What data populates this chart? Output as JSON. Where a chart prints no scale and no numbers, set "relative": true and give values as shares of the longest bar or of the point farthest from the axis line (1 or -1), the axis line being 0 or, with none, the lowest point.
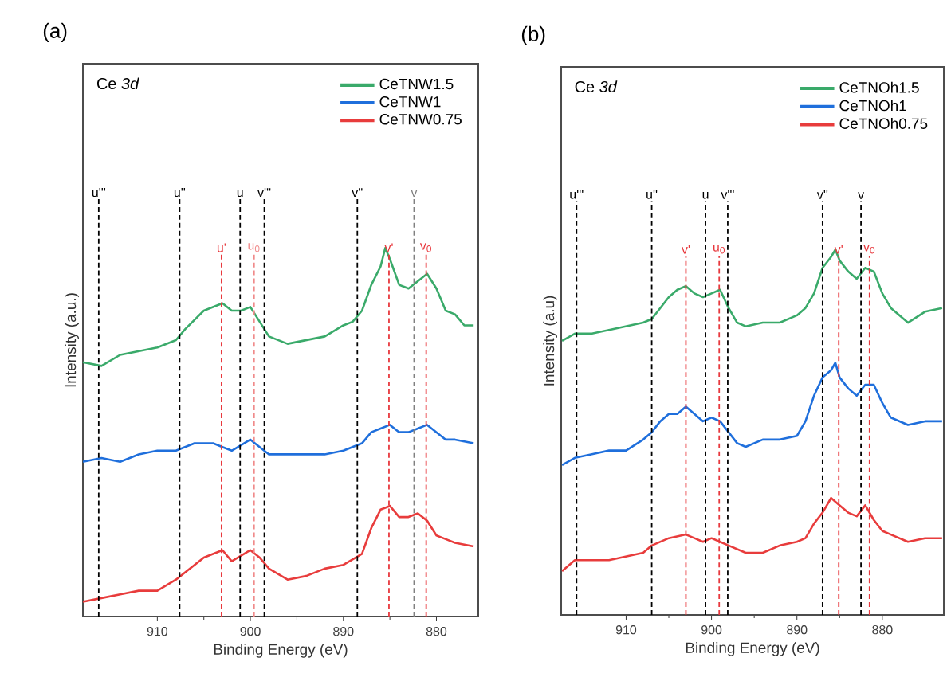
{
  "chart_data": [
    {
      "type": "line",
      "title": "(a)",
      "xlabel": "Binding Energy (eV)",
      "ylabel": "Intensity (a.u.)",
      "relative": true,
      "legend": "top right",
      "annotations": [
        "Ce *3d*"
      ],
      "xlim": [
        918,
        875.5
      ],
      "xticks": [
        910,
        900,
        890,
        880
      ],
      "ref_lines": [
        {
          "axis": "x",
          "value": 916.3,
          "label": "u'''",
          "color": "#000000",
          "line_style": "dashed"
        },
        {
          "axis": "x",
          "value": 907.6,
          "label": "u''",
          "color": "#000000",
          "line_style": "dashed"
        },
        {
          "axis": "x",
          "value": 901.1,
          "label": "u",
          "color": "#000000",
          "line_style": "dashed"
        },
        {
          "axis": "x",
          "value": 898.5,
          "label": "v'''",
          "color": "#000000",
          "line_style": "dashed"
        },
        {
          "axis": "x",
          "value": 888.5,
          "label": "v''",
          "color": "#000000",
          "line_style": "dashed"
        },
        {
          "axis": "x",
          "value": 882.4,
          "label": "v",
          "color": "#808080",
          "line_style": "dashed"
        },
        {
          "axis": "x",
          "value": 903.1,
          "label": "u'",
          "color": "#e8383d",
          "line_style": "dashed"
        },
        {
          "axis": "x",
          "value": 899.6,
          "label": "u$_{0}$",
          "color": "#f08a8a",
          "line_style": "dashed"
        },
        {
          "axis": "x",
          "value": 885.1,
          "label": "v'",
          "color": "#e8383d",
          "line_style": "dashed"
        },
        {
          "axis": "x",
          "value": 881.1,
          "label": "v$_{0}$",
          "color": "#e8383d",
          "line_style": "dashed"
        }
      ],
      "series": [
        {
          "name": "CeTNW1.5",
          "color": "#3aaa6a",
          "x": [
            918,
            916,
            914,
            912,
            910,
            908,
            907,
            905,
            903,
            902,
            901,
            900,
            899,
            898,
            896,
            894,
            892,
            890,
            889,
            888,
            887,
            886,
            885.5,
            885,
            884,
            883,
            882,
            881,
            880,
            879,
            878,
            877,
            876
          ],
          "values": [
            0.69,
            0.68,
            0.71,
            0.72,
            0.73,
            0.75,
            0.78,
            0.83,
            0.85,
            0.83,
            0.83,
            0.84,
            0.8,
            0.76,
            0.74,
            0.75,
            0.76,
            0.79,
            0.8,
            0.83,
            0.9,
            0.95,
            1.0,
            0.97,
            0.9,
            0.89,
            0.91,
            0.93,
            0.89,
            0.83,
            0.82,
            0.79,
            0.79
          ]
        },
        {
          "name": "CeTNW1",
          "color": "#1f6fdc",
          "x": [
            918,
            916,
            914,
            912,
            910,
            908,
            906,
            904,
            903,
            902,
            900,
            899,
            898,
            896,
            894,
            892,
            890,
            888,
            887,
            886,
            885,
            884,
            883,
            882,
            881,
            880,
            879,
            878,
            876
          ],
          "values": [
            0.42,
            0.43,
            0.42,
            0.44,
            0.45,
            0.45,
            0.47,
            0.47,
            0.46,
            0.45,
            0.48,
            0.46,
            0.44,
            0.44,
            0.44,
            0.44,
            0.45,
            0.47,
            0.5,
            0.51,
            0.52,
            0.5,
            0.5,
            0.51,
            0.52,
            0.5,
            0.48,
            0.48,
            0.47
          ]
        },
        {
          "name": "CeTNW0.75",
          "color": "#e83c3c",
          "x": [
            918,
            916,
            914,
            912,
            910,
            908,
            907,
            905,
            903,
            902,
            900,
            899,
            898,
            896,
            894,
            892,
            890,
            888,
            887,
            886,
            885,
            884,
            883,
            882,
            881,
            880,
            879,
            878,
            876
          ],
          "values": [
            0.04,
            0.05,
            0.06,
            0.07,
            0.07,
            0.1,
            0.12,
            0.16,
            0.18,
            0.15,
            0.18,
            0.16,
            0.13,
            0.1,
            0.11,
            0.13,
            0.14,
            0.17,
            0.24,
            0.29,
            0.3,
            0.27,
            0.27,
            0.28,
            0.26,
            0.22,
            0.21,
            0.2,
            0.19
          ]
        }
      ]
    },
    {
      "type": "line",
      "title": "(b)",
      "xlabel": "Binding Energy (eV)",
      "ylabel": "Intensity (a.u)",
      "relative": true,
      "legend": "top right",
      "annotations": [
        "Ce *3d*"
      ],
      "xlim": [
        917.6,
        872.8
      ],
      "xticks": [
        910,
        900,
        890,
        880
      ],
      "ref_lines": [
        {
          "axis": "x",
          "value": 915.8,
          "label": "u'''",
          "color": "#000000",
          "line_style": "dashed"
        },
        {
          "axis": "x",
          "value": 907.0,
          "label": "u''",
          "color": "#000000",
          "line_style": "dashed"
        },
        {
          "axis": "x",
          "value": 900.7,
          "label": "u",
          "color": "#000000",
          "line_style": "dashed"
        },
        {
          "axis": "x",
          "value": 898.1,
          "label": "v'''",
          "color": "#000000",
          "line_style": "dashed"
        },
        {
          "axis": "x",
          "value": 887.0,
          "label": "v''",
          "color": "#000000",
          "line_style": "dashed"
        },
        {
          "axis": "x",
          "value": 882.5,
          "label": "v",
          "color": "#000000",
          "line_style": "dashed"
        },
        {
          "axis": "x",
          "value": 903.0,
          "label": "v'",
          "color": "#e8383d",
          "line_style": "dashed"
        },
        {
          "axis": "x",
          "value": 899.1,
          "label": "u$_{0}$",
          "color": "#e8383d",
          "line_style": "dashed"
        },
        {
          "axis": "x",
          "value": 885.1,
          "label": "v'",
          "color": "#e8383d",
          "line_style": "dashed"
        },
        {
          "axis": "x",
          "value": 881.5,
          "label": "v$_{0}$",
          "color": "#e8383d",
          "line_style": "dashed"
        }
      ],
      "series": [
        {
          "name": "CeTNOh1.5",
          "color": "#3aaa6a",
          "x": [
            917.5,
            916,
            914,
            912,
            910,
            908,
            907,
            906,
            905,
            904,
            903,
            902,
            901,
            900,
            899,
            898,
            897,
            896,
            894,
            892,
            890,
            889,
            888,
            887,
            886,
            885.5,
            885,
            884,
            883,
            882,
            881,
            880,
            879,
            877,
            875,
            873
          ],
          "values": [
            0.75,
            0.77,
            0.77,
            0.78,
            0.79,
            0.8,
            0.81,
            0.84,
            0.87,
            0.89,
            0.9,
            0.88,
            0.87,
            0.88,
            0.89,
            0.84,
            0.8,
            0.79,
            0.8,
            0.8,
            0.82,
            0.84,
            0.88,
            0.95,
            0.98,
            1.0,
            0.97,
            0.94,
            0.92,
            0.95,
            0.94,
            0.88,
            0.84,
            0.8,
            0.83,
            0.84
          ]
        },
        {
          "name": "CeTNOh1",
          "color": "#1f6fdc",
          "x": [
            917.5,
            916,
            914,
            912,
            910,
            908,
            907,
            906,
            905,
            904,
            903,
            902,
            901,
            900,
            899,
            898,
            897,
            896,
            894,
            892,
            890,
            889,
            888,
            887,
            886,
            885.5,
            885,
            884,
            883,
            882,
            881,
            880,
            879,
            877,
            875,
            873
          ],
          "values": [
            0.41,
            0.43,
            0.44,
            0.45,
            0.45,
            0.48,
            0.5,
            0.53,
            0.55,
            0.55,
            0.57,
            0.55,
            0.53,
            0.54,
            0.53,
            0.5,
            0.47,
            0.46,
            0.48,
            0.48,
            0.49,
            0.53,
            0.6,
            0.65,
            0.67,
            0.69,
            0.65,
            0.62,
            0.6,
            0.63,
            0.63,
            0.58,
            0.54,
            0.52,
            0.53,
            0.53
          ]
        },
        {
          "name": "CeTNOh0.75",
          "color": "#e83c3c",
          "x": [
            917.5,
            916,
            914,
            912,
            910,
            908,
            907,
            906,
            905,
            903,
            902,
            901,
            900,
            899,
            898,
            896,
            894,
            892,
            890,
            889,
            888,
            887,
            886,
            885,
            884,
            883,
            882,
            881,
            880,
            879,
            877,
            875,
            873
          ],
          "values": [
            0.12,
            0.15,
            0.15,
            0.15,
            0.16,
            0.17,
            0.19,
            0.2,
            0.21,
            0.22,
            0.21,
            0.2,
            0.21,
            0.2,
            0.19,
            0.17,
            0.17,
            0.19,
            0.2,
            0.21,
            0.25,
            0.28,
            0.32,
            0.3,
            0.28,
            0.27,
            0.3,
            0.26,
            0.23,
            0.22,
            0.2,
            0.21,
            0.21
          ]
        }
      ]
    }
  ]
}
